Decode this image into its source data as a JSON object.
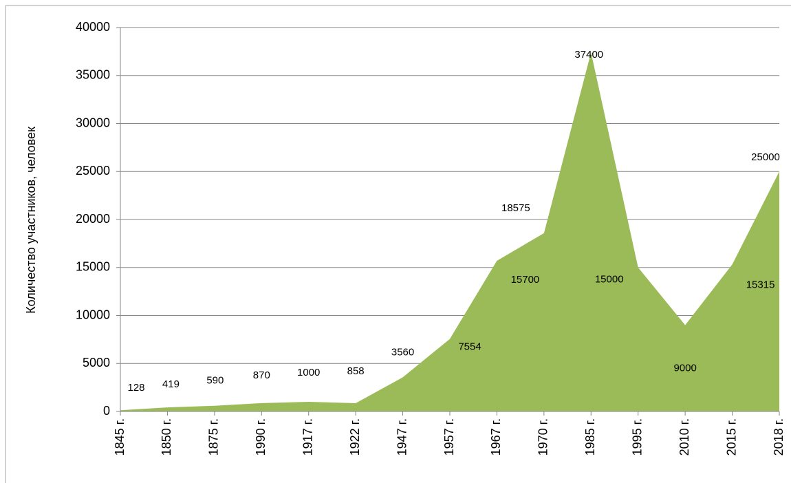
{
  "chart_data": {
    "type": "area",
    "y_label": "Количество участников, человек",
    "categories": [
      "1845 г.",
      "1850 г.",
      "1875 г.",
      "1990 г.",
      "1917 г.",
      "1922 г.",
      "1947 г.",
      "1957 г.",
      "1967 г.",
      "1970 г.",
      "1985 г.",
      "1995 г.",
      "2010 г.",
      "2015 г.",
      "2018 г."
    ],
    "values": [
      128,
      419,
      590,
      870,
      1000,
      858,
      3560,
      7554,
      15700,
      18575,
      37400,
      15000,
      9000,
      15315,
      25000
    ],
    "color": "#9bbb59",
    "ylim": [
      0,
      40000
    ],
    "yticks": [
      0,
      5000,
      10000,
      15000,
      20000,
      25000,
      30000,
      35000,
      40000
    ],
    "grid": true
  }
}
